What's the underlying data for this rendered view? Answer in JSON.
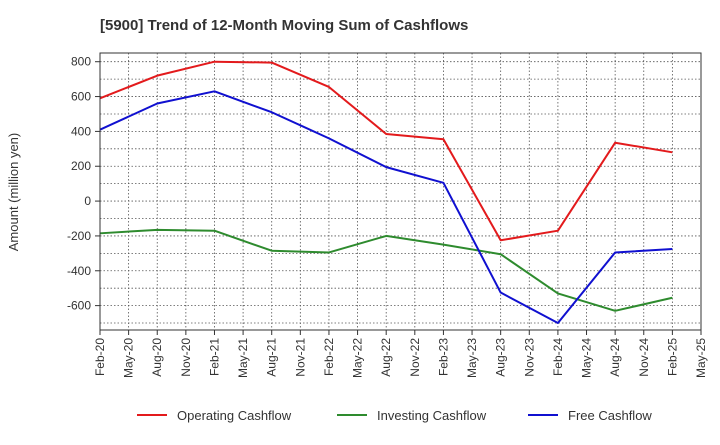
{
  "chart_data": {
    "type": "line",
    "title": "[5900]  Trend of 12-Month Moving Sum of Cashflows",
    "xlabel": "",
    "ylabel": "Amount (million yen)",
    "ylim": [
      -740,
      850
    ],
    "yticks": [
      800,
      600,
      400,
      200,
      0,
      -200,
      -400,
      -600
    ],
    "grid": true,
    "legend_position": "bottom",
    "categories": [
      "Feb-20",
      "May-20",
      "Aug-20",
      "Nov-20",
      "Feb-21",
      "May-21",
      "Aug-21",
      "Nov-21",
      "Feb-22",
      "May-22",
      "Aug-22",
      "Nov-22",
      "Feb-23",
      "May-23",
      "Aug-23",
      "Nov-23",
      "Feb-24",
      "May-24",
      "Aug-24",
      "Nov-24",
      "Feb-25",
      "May-25"
    ],
    "x": [
      "Feb-20",
      "Aug-20",
      "Feb-21",
      "Aug-21",
      "Feb-22",
      "Aug-22",
      "Feb-23",
      "Aug-23",
      "Feb-24",
      "Aug-24",
      "Feb-25"
    ],
    "series": [
      {
        "name": "Operating Cashflow",
        "color": "#e31a1c",
        "values": [
          590,
          720,
          800,
          795,
          655,
          385,
          355,
          -225,
          -170,
          335,
          280
        ]
      },
      {
        "name": "Investing Cashflow",
        "color": "#2e8b2e",
        "values": [
          -185,
          -165,
          -170,
          -285,
          -295,
          -200,
          -250,
          -305,
          -530,
          -630,
          -555
        ]
      },
      {
        "name": "Free Cashflow",
        "color": "#1010d0",
        "values": [
          410,
          560,
          630,
          510,
          360,
          195,
          105,
          -525,
          -700,
          -295,
          -275
        ]
      }
    ]
  }
}
